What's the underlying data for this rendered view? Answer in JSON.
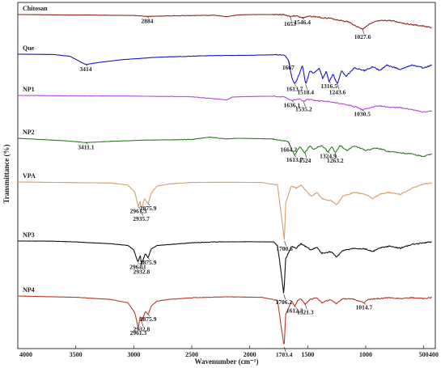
{
  "chart_data": {
    "type": "line",
    "title": "",
    "xlabel": "Wavenumber (cm⁻¹)",
    "ylabel": "Transmittance (%)",
    "xlim": [
      4000,
      400
    ],
    "x_ticks": [
      "4000",
      "3500",
      "3000",
      "2500",
      "2000",
      "1500",
      "1000",
      "500",
      "400"
    ],
    "grid": false,
    "series": [
      {
        "name": "Chitosan",
        "color": "#8b2a1a",
        "trace": [
          [
            4000,
            0.0
          ],
          [
            3500,
            0.3
          ],
          [
            3000,
            0.6
          ],
          [
            2884,
            1.3
          ],
          [
            2700,
            0.9
          ],
          [
            2300,
            0.5
          ],
          [
            2200,
            1.5
          ],
          [
            2100,
            0.2
          ],
          [
            1900,
            0.0
          ],
          [
            1800,
            0.0
          ],
          [
            1700,
            0.2
          ],
          [
            1653,
            1.2
          ],
          [
            1600,
            0.8
          ],
          [
            1546.4,
            2.2
          ],
          [
            1480,
            1.2
          ],
          [
            1420,
            1.6
          ],
          [
            1380,
            2.2
          ],
          [
            1320,
            2.4
          ],
          [
            1260,
            3.4
          ],
          [
            1150,
            5.0
          ],
          [
            1080,
            8.0
          ],
          [
            1027.6,
            10.0
          ],
          [
            980,
            7.0
          ],
          [
            900,
            4.5
          ],
          [
            800,
            4.0
          ],
          [
            700,
            5.5
          ],
          [
            600,
            7.0
          ],
          [
            500,
            8.0
          ],
          [
            430,
            9.0
          ]
        ],
        "peaks": [
          {
            "x": 2884,
            "label": "2884"
          },
          {
            "x": 1653,
            "label": "1653"
          },
          {
            "x": 1546.4,
            "label": "1546.4"
          },
          {
            "x": 1027.6,
            "label": "1027.6"
          }
        ]
      },
      {
        "name": "Que",
        "color": "#1a1abf",
        "trace": [
          [
            4000,
            0.0
          ],
          [
            3700,
            0.2
          ],
          [
            3550,
            1.5
          ],
          [
            3450,
            6.0
          ],
          [
            3414,
            7.5
          ],
          [
            3300,
            6.0
          ],
          [
            3100,
            4.0
          ],
          [
            2800,
            2.2
          ],
          [
            2300,
            1.0
          ],
          [
            2000,
            0.8
          ],
          [
            1800,
            0.4
          ],
          [
            1700,
            0.6
          ],
          [
            1667,
            4.0
          ],
          [
            1640,
            16.0
          ],
          [
            1613.7,
            22.0
          ],
          [
            1570,
            14.0
          ],
          [
            1545,
            8.0
          ],
          [
            1518.4,
            22.0
          ],
          [
            1480,
            12.0
          ],
          [
            1450,
            14.0
          ],
          [
            1400,
            10.0
          ],
          [
            1370,
            18.0
          ],
          [
            1340,
            12.0
          ],
          [
            1316.5,
            20.0
          ],
          [
            1280,
            14.0
          ],
          [
            1265,
            18.0
          ],
          [
            1243.6,
            22.0
          ],
          [
            1210,
            12.0
          ],
          [
            1170,
            16.0
          ],
          [
            1100,
            10.0
          ],
          [
            1010,
            12.0
          ],
          [
            940,
            9.0
          ],
          [
            880,
            12.0
          ],
          [
            820,
            8.0
          ],
          [
            700,
            11.0
          ],
          [
            600,
            8.0
          ],
          [
            500,
            10.0
          ],
          [
            430,
            8.0
          ]
        ],
        "peaks": [
          {
            "x": 3414,
            "label": "3414"
          },
          {
            "x": 1667,
            "label": "1667"
          },
          {
            "x": 1613.7,
            "label": "1613.7"
          },
          {
            "x": 1518.4,
            "label": "1518.4"
          },
          {
            "x": 1316.5,
            "label": "1316.5"
          },
          {
            "x": 1243.6,
            "label": "1243.6"
          }
        ]
      },
      {
        "name": "NP1",
        "color": "#b34fd8",
        "trace": [
          [
            4000,
            0.0
          ],
          [
            3500,
            0.3
          ],
          [
            3000,
            0.5
          ],
          [
            2500,
            1.0
          ],
          [
            2200,
            3.5
          ],
          [
            2150,
            1.2
          ],
          [
            2000,
            0.8
          ],
          [
            1800,
            0.6
          ],
          [
            1700,
            1.2
          ],
          [
            1636.1,
            4.0
          ],
          [
            1600,
            3.0
          ],
          [
            1570,
            2.5
          ],
          [
            1535.2,
            4.8
          ],
          [
            1500,
            3.0
          ],
          [
            1450,
            3.5
          ],
          [
            1400,
            4.2
          ],
          [
            1300,
            5.0
          ],
          [
            1200,
            6.5
          ],
          [
            1080,
            9.0
          ],
          [
            1030.5,
            11.0
          ],
          [
            980,
            10.0
          ],
          [
            900,
            8.0
          ],
          [
            800,
            9.0
          ],
          [
            700,
            9.5
          ],
          [
            600,
            11.0
          ],
          [
            500,
            13.0
          ],
          [
            430,
            12.0
          ]
        ],
        "peaks": [
          {
            "x": 1636.1,
            "label": "1636.1"
          },
          {
            "x": 1535.2,
            "label": "1535.2"
          },
          {
            "x": 1030.5,
            "label": "1030.5"
          }
        ]
      },
      {
        "name": "NP2",
        "color": "#2e7d23",
        "trace": [
          [
            4000,
            0.0
          ],
          [
            3600,
            2.0
          ],
          [
            3411.1,
            3.5
          ],
          [
            3200,
            2.5
          ],
          [
            2900,
            1.5
          ],
          [
            2500,
            1.0
          ],
          [
            2350,
            -1.0
          ],
          [
            2200,
            0.5
          ],
          [
            2100,
            0.0
          ],
          [
            1800,
            0.5
          ],
          [
            1700,
            2.0
          ],
          [
            1664.2,
            3.0
          ],
          [
            1640,
            9.0
          ],
          [
            1613.7,
            14.0
          ],
          [
            1570,
            7.0
          ],
          [
            1524,
            12.0
          ],
          [
            1480,
            6.0
          ],
          [
            1450,
            9.0
          ],
          [
            1380,
            6.0
          ],
          [
            1324.9,
            11.0
          ],
          [
            1290,
            7.0
          ],
          [
            1263.2,
            12.0
          ],
          [
            1220,
            6.0
          ],
          [
            1160,
            10.0
          ],
          [
            1100,
            6.0
          ],
          [
            1000,
            10.0
          ],
          [
            900,
            8.0
          ],
          [
            800,
            11.0
          ],
          [
            700,
            12.0
          ],
          [
            600,
            13.0
          ],
          [
            500,
            15.0
          ],
          [
            430,
            13.0
          ]
        ],
        "peaks": [
          {
            "x": 3411.1,
            "label": "3411.1"
          },
          {
            "x": 1664.2,
            "label": "1664.2"
          },
          {
            "x": 1613.7,
            "label": "1613.7"
          },
          {
            "x": 1524,
            "label": "1524"
          },
          {
            "x": 1324.9,
            "label": "1324.9"
          },
          {
            "x": 1263.2,
            "label": "1263.2"
          }
        ]
      },
      {
        "name": "VPA",
        "color": "#d4a06a",
        "trace": [
          [
            4000,
            0.0
          ],
          [
            3200,
            1.0
          ],
          [
            3050,
            3.0
          ],
          [
            2990,
            10.0
          ],
          [
            2961.3,
            24.0
          ],
          [
            2945,
            18.0
          ],
          [
            2935.7,
            28.0
          ],
          [
            2910,
            16.0
          ],
          [
            2875.9,
            21.0
          ],
          [
            2850,
            11.0
          ],
          [
            2800,
            4.0
          ],
          [
            2700,
            2.0
          ],
          [
            2500,
            0.5
          ],
          [
            2200,
            0.2
          ],
          [
            1900,
            0.5
          ],
          [
            1760,
            3.0
          ],
          [
            1730,
            30.0
          ],
          [
            1700.6,
            57.0
          ],
          [
            1690,
            20.0
          ],
          [
            1640,
            4.0
          ],
          [
            1600,
            6.0
          ],
          [
            1560,
            3.0
          ],
          [
            1470,
            14.0
          ],
          [
            1420,
            10.0
          ],
          [
            1380,
            16.0
          ],
          [
            1300,
            18.0
          ],
          [
            1250,
            22.0
          ],
          [
            1200,
            14.0
          ],
          [
            1100,
            10.0
          ],
          [
            1000,
            12.0
          ],
          [
            940,
            16.0
          ],
          [
            880,
            12.0
          ],
          [
            800,
            10.0
          ],
          [
            700,
            12.0
          ],
          [
            600,
            6.0
          ],
          [
            500,
            2.0
          ],
          [
            430,
            1.0
          ]
        ],
        "peaks": [
          {
            "x": 2961.3,
            "label": "2961.3"
          },
          {
            "x": 2935.7,
            "label": "2935.7"
          },
          {
            "x": 2875.9,
            "label": "2875.9"
          },
          {
            "x": 1700.6,
            "label": "1700.6"
          }
        ]
      },
      {
        "name": "NP3",
        "color": "#111111",
        "trace": [
          [
            4000,
            0.0
          ],
          [
            3700,
            0.2
          ],
          [
            3500,
            1.0
          ],
          [
            3400,
            1.8
          ],
          [
            3200,
            3.0
          ],
          [
            3050,
            5.0
          ],
          [
            3000,
            10.0
          ],
          [
            2964.1,
            24.0
          ],
          [
            2945,
            16.0
          ],
          [
            2932.8,
            26.0
          ],
          [
            2900,
            14.0
          ],
          [
            2875.9,
            19.0
          ],
          [
            2850,
            9.0
          ],
          [
            2800,
            5.0
          ],
          [
            2700,
            4.0
          ],
          [
            2500,
            2.0
          ],
          [
            2300,
            1.0
          ],
          [
            2000,
            0.8
          ],
          [
            1800,
            1.0
          ],
          [
            1760,
            5.0
          ],
          [
            1730,
            35.0
          ],
          [
            1706.2,
            60.0
          ],
          [
            1690,
            20.0
          ],
          [
            1640,
            6.0
          ],
          [
            1600,
            8.0
          ],
          [
            1560,
            3.0
          ],
          [
            1470,
            10.0
          ],
          [
            1420,
            7.0
          ],
          [
            1380,
            14.0
          ],
          [
            1300,
            12.0
          ],
          [
            1250,
            18.0
          ],
          [
            1200,
            11.0
          ],
          [
            1100,
            8.0
          ],
          [
            1000,
            9.0
          ],
          [
            940,
            12.0
          ],
          [
            880,
            8.0
          ],
          [
            800,
            6.0
          ],
          [
            700,
            8.0
          ],
          [
            600,
            4.0
          ],
          [
            500,
            2.0
          ],
          [
            430,
            1.0
          ]
        ],
        "peaks": [
          {
            "x": 2964.1,
            "label": "2964.1"
          },
          {
            "x": 2932.8,
            "label": "2932.8"
          },
          {
            "x": 2875.9,
            "label": "2875.9"
          },
          {
            "x": 1706.2,
            "label": "1706.2"
          }
        ]
      },
      {
        "name": "NP4",
        "color": "#b83a2a",
        "trace": [
          [
            4000,
            0.0
          ],
          [
            3500,
            1.5
          ],
          [
            3200,
            4.0
          ],
          [
            3050,
            8.0
          ],
          [
            2990,
            20.0
          ],
          [
            2961.3,
            38.0
          ],
          [
            2945,
            24.0
          ],
          [
            2932.8,
            30.0
          ],
          [
            2900,
            18.0
          ],
          [
            2875.9,
            22.0
          ],
          [
            2850,
            12.0
          ],
          [
            2800,
            6.0
          ],
          [
            2700,
            4.0
          ],
          [
            2500,
            2.0
          ],
          [
            2200,
            1.0
          ],
          [
            1900,
            1.5
          ],
          [
            1760,
            5.0
          ],
          [
            1730,
            35.0
          ],
          [
            1703.4,
            60.0
          ],
          [
            1690,
            22.0
          ],
          [
            1640,
            6.0
          ],
          [
            1612.3,
            12.0
          ],
          [
            1580,
            4.0
          ],
          [
            1560,
            3.0
          ],
          [
            1521.3,
            10.0
          ],
          [
            1480,
            4.0
          ],
          [
            1420,
            2.0
          ],
          [
            1380,
            8.0
          ],
          [
            1300,
            4.0
          ],
          [
            1250,
            9.0
          ],
          [
            1200,
            3.0
          ],
          [
            1100,
            4.0
          ],
          [
            1014.7,
            8.0
          ],
          [
            980,
            4.0
          ],
          [
            900,
            3.0
          ],
          [
            800,
            2.0
          ],
          [
            700,
            3.0
          ],
          [
            600,
            2.0
          ],
          [
            500,
            3.0
          ],
          [
            430,
            2.0
          ]
        ],
        "peaks": [
          {
            "x": 2961.3,
            "label": "2961.3"
          },
          {
            "x": 2932.8,
            "label": "2932.8"
          },
          {
            "x": 2875.9,
            "label": "2875.9"
          },
          {
            "x": 1703.4,
            "label": "1703.4"
          },
          {
            "x": 1612.3,
            "label": "1612.3"
          },
          {
            "x": 1521.3,
            "label": "1521.3"
          },
          {
            "x": 1014.7,
            "label": "1014.7"
          }
        ]
      }
    ]
  }
}
